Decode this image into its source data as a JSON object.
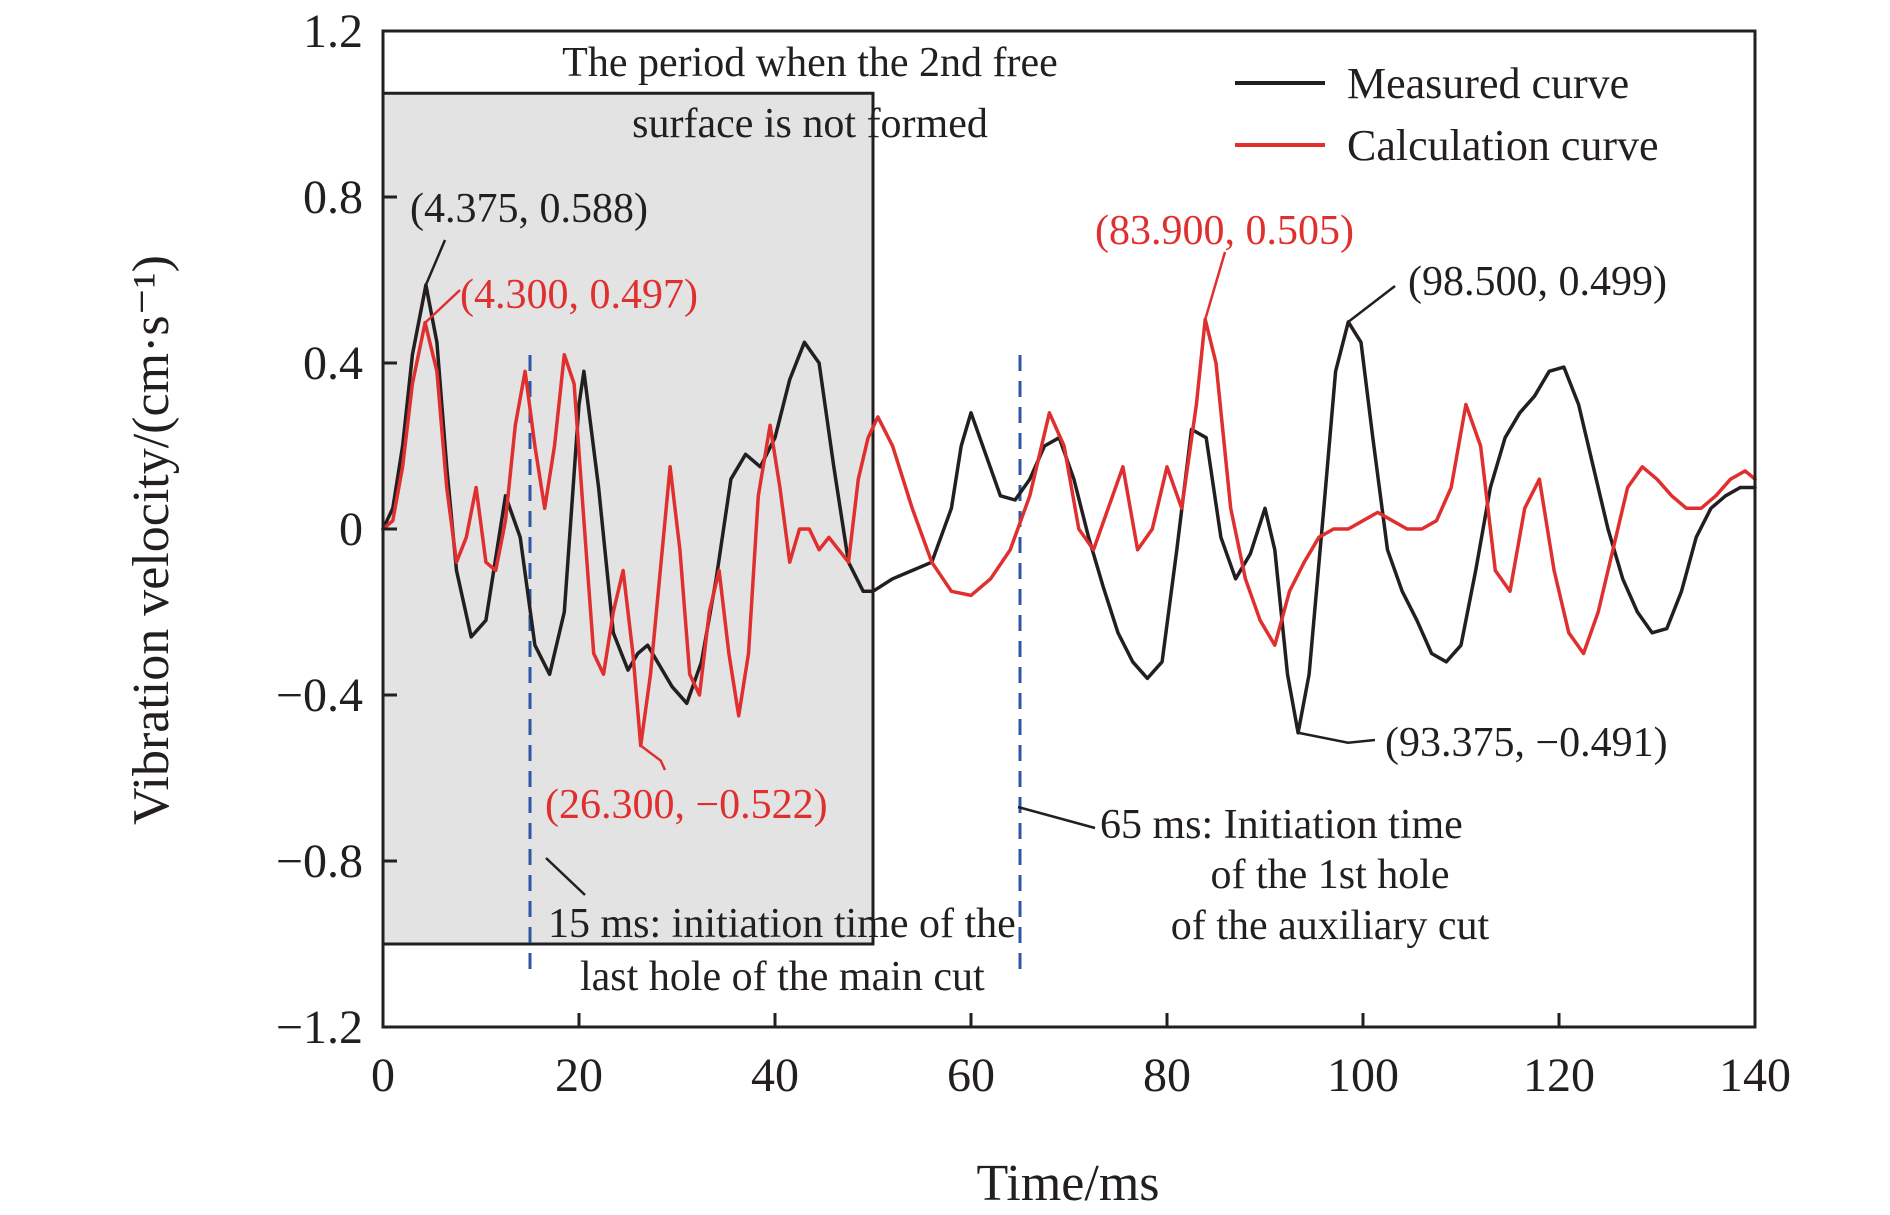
{
  "chart_data": {
    "type": "line",
    "title": "",
    "xlabel": "Time/ms",
    "ylabel": "Vibration velocity/(cm·s⁻¹)",
    "xlim": [
      0,
      140
    ],
    "ylim": [
      -1.2,
      1.2
    ],
    "x_ticks": [
      {
        "value": 0,
        "label": "0"
      },
      {
        "value": 20,
        "label": "20"
      },
      {
        "value": 40,
        "label": "40"
      },
      {
        "value": 60,
        "label": "60"
      },
      {
        "value": 80,
        "label": "80"
      },
      {
        "value": 100,
        "label": "100"
      },
      {
        "value": 120,
        "label": "120"
      },
      {
        "value": 140,
        "label": "140"
      }
    ],
    "y_ticks": [
      {
        "value": 1.2,
        "label": "1.2"
      },
      {
        "value": 0.8,
        "label": "0.8"
      },
      {
        "value": 0.4,
        "label": "0.4"
      },
      {
        "value": 0,
        "label": "0"
      },
      {
        "value": -0.4,
        "label": "−0.4"
      },
      {
        "value": -0.8,
        "label": "−0.8"
      },
      {
        "value": -1.2,
        "label": "−1.2"
      }
    ],
    "grid": false,
    "legend_position": "top-right",
    "shaded_region": {
      "x": [
        0,
        50
      ],
      "y": [
        -1.0,
        1.05
      ],
      "label_lines": [
        "The period when the 2nd free",
        "surface is not formed"
      ],
      "fill": "#e3e3e3"
    },
    "vlines": [
      {
        "x": 15,
        "label_lines": [
          "15 ms: initiation time of the",
          "last hole of the main cut"
        ],
        "color": "#2f55a4"
      },
      {
        "x": 65,
        "label_lines": [
          "65 ms: Initiation time",
          "of the 1st hole",
          "of the auxiliary cut"
        ],
        "color": "#2f55a4"
      }
    ],
    "series": [
      {
        "name": "Measured curve",
        "color": "#231f20",
        "x": [
          0,
          1,
          2,
          3,
          4.375,
          5.5,
          6.5,
          7.5,
          9,
          10.5,
          12.5,
          14,
          15.5,
          17,
          18.5,
          20,
          20.5,
          22,
          23.5,
          25,
          26,
          27,
          28,
          29.5,
          31,
          32.5,
          34,
          35.5,
          37,
          38.5,
          40,
          41.5,
          43,
          44.5,
          46,
          47.5,
          49,
          50,
          52,
          54,
          56,
          58,
          59,
          60,
          61.5,
          63,
          64.5,
          66,
          67.5,
          69,
          70.5,
          72,
          73.5,
          75,
          76.5,
          78,
          79.5,
          81,
          82.5,
          84,
          85.5,
          87,
          88.5,
          90,
          91,
          92.3,
          93.375,
          94.5,
          96,
          97.2,
          98.5,
          99.8,
          101,
          102.5,
          104,
          105.5,
          107,
          108.5,
          110,
          111.5,
          113,
          114.5,
          116,
          117.5,
          119,
          120.5,
          122,
          123.5,
          125,
          126.5,
          128,
          129.5,
          131,
          132.5,
          134,
          135.5,
          137,
          138.5,
          140
        ],
        "values": [
          0.0,
          0.05,
          0.2,
          0.42,
          0.588,
          0.45,
          0.15,
          -0.1,
          -0.26,
          -0.22,
          0.08,
          -0.02,
          -0.28,
          -0.35,
          -0.2,
          0.3,
          0.38,
          0.1,
          -0.25,
          -0.34,
          -0.3,
          -0.28,
          -0.32,
          -0.38,
          -0.42,
          -0.32,
          -0.12,
          0.12,
          0.18,
          0.15,
          0.22,
          0.36,
          0.45,
          0.4,
          0.15,
          -0.08,
          -0.15,
          -0.15,
          -0.12,
          -0.1,
          -0.08,
          0.05,
          0.2,
          0.28,
          0.18,
          0.08,
          0.07,
          0.12,
          0.2,
          0.22,
          0.12,
          -0.02,
          -0.14,
          -0.25,
          -0.32,
          -0.36,
          -0.32,
          -0.05,
          0.24,
          0.22,
          -0.02,
          -0.12,
          -0.06,
          0.05,
          -0.05,
          -0.35,
          -0.491,
          -0.35,
          0.05,
          0.38,
          0.499,
          0.45,
          0.22,
          -0.05,
          -0.15,
          -0.22,
          -0.3,
          -0.32,
          -0.28,
          -0.1,
          0.1,
          0.22,
          0.28,
          0.32,
          0.38,
          0.39,
          0.3,
          0.15,
          0.0,
          -0.12,
          -0.2,
          -0.25,
          -0.24,
          -0.15,
          -0.02,
          0.05,
          0.08,
          0.1,
          0.1
        ]
      },
      {
        "name": "Calculation curve",
        "color": "#e02f2f",
        "x": [
          0,
          1,
          2,
          3,
          4.3,
          5.5,
          6.5,
          7.5,
          8.5,
          9.5,
          10.5,
          11.5,
          12.5,
          13.5,
          14.5,
          15.5,
          16.5,
          17.5,
          18.5,
          19.5,
          20.5,
          21.5,
          22.5,
          23.5,
          24.5,
          25.5,
          26.3,
          27.3,
          28.3,
          29.3,
          30.3,
          31.3,
          32.3,
          33.3,
          34.3,
          35.3,
          36.3,
          37.3,
          38.3,
          39.5,
          40.5,
          41.5,
          42.5,
          43.5,
          44.5,
          45.5,
          46.5,
          47.5,
          48.5,
          49.5,
          50.5,
          52,
          54,
          56,
          58,
          60,
          62,
          64,
          66,
          68,
          69.5,
          71,
          72.5,
          74,
          75.5,
          77,
          78.5,
          80,
          81.5,
          83,
          83.9,
          85,
          86.5,
          88,
          89.5,
          91,
          92.5,
          94,
          95.5,
          97,
          98.5,
          100,
          101.5,
          103,
          104.5,
          106,
          107.5,
          109,
          110.5,
          112,
          113.5,
          115,
          116.5,
          118,
          119.5,
          121,
          122.5,
          124,
          125.5,
          127,
          128.5,
          130,
          131.5,
          133,
          134.5,
          136,
          137.5,
          139,
          140
        ],
        "values": [
          0.0,
          0.02,
          0.15,
          0.35,
          0.497,
          0.38,
          0.1,
          -0.08,
          -0.02,
          0.1,
          -0.08,
          -0.1,
          0.02,
          0.25,
          0.38,
          0.2,
          0.05,
          0.2,
          0.42,
          0.35,
          0.02,
          -0.3,
          -0.35,
          -0.2,
          -0.1,
          -0.3,
          -0.522,
          -0.35,
          -0.1,
          0.15,
          -0.05,
          -0.35,
          -0.4,
          -0.2,
          -0.1,
          -0.3,
          -0.45,
          -0.3,
          0.08,
          0.25,
          0.1,
          -0.08,
          0.0,
          0.0,
          -0.05,
          -0.02,
          -0.05,
          -0.08,
          0.12,
          0.22,
          0.27,
          0.2,
          0.05,
          -0.08,
          -0.15,
          -0.16,
          -0.12,
          -0.05,
          0.08,
          0.28,
          0.2,
          0.0,
          -0.05,
          0.05,
          0.15,
          -0.05,
          0.0,
          0.15,
          0.05,
          0.3,
          0.505,
          0.4,
          0.05,
          -0.12,
          -0.22,
          -0.28,
          -0.15,
          -0.08,
          -0.02,
          0.0,
          0.0,
          0.02,
          0.04,
          0.02,
          0.0,
          0.0,
          0.02,
          0.1,
          0.3,
          0.2,
          -0.1,
          -0.15,
          0.05,
          0.12,
          -0.1,
          -0.25,
          -0.3,
          -0.2,
          -0.05,
          0.1,
          0.15,
          0.12,
          0.08,
          0.05,
          0.05,
          0.08,
          0.12,
          0.14,
          0.12
        ]
      }
    ],
    "annotations": [
      {
        "text": "(4.375, 0.588)",
        "series": 0,
        "x": 4.375,
        "y": 0.588,
        "color": "#231f20"
      },
      {
        "text": "(4.300, 0.497)",
        "series": 1,
        "x": 4.3,
        "y": 0.497,
        "color": "#e02f2f"
      },
      {
        "text": "(26.300, −0.522)",
        "series": 1,
        "x": 26.3,
        "y": -0.522,
        "color": "#e02f2f"
      },
      {
        "text": "(83.900, 0.505)",
        "series": 1,
        "x": 83.9,
        "y": 0.505,
        "color": "#e02f2f"
      },
      {
        "text": "(98.500, 0.499)",
        "series": 0,
        "x": 98.5,
        "y": 0.499,
        "color": "#231f20"
      },
      {
        "text": "(93.375, −0.491)",
        "series": 0,
        "x": 93.375,
        "y": -0.491,
        "color": "#231f20"
      }
    ]
  }
}
